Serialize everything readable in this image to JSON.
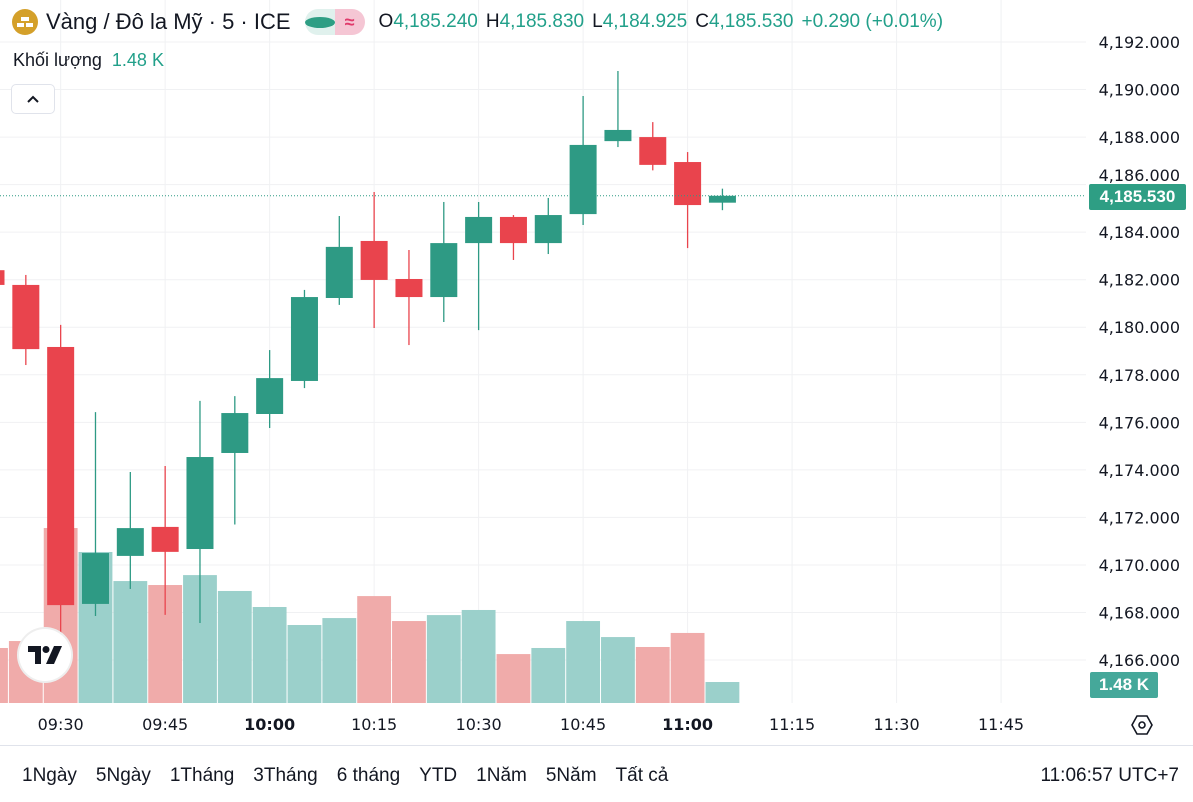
{
  "header": {
    "symbol_title": "Vàng / Đô la Mỹ · 5 · ICE",
    "open_label": "O",
    "open": "4,185.240",
    "high_label": "H",
    "high": "4,185.830",
    "low_label": "L",
    "low": "4,184.925",
    "close_label": "C",
    "close": "4,185.530",
    "change": "+0.290 (+0.01%)",
    "approx_icon": "≈"
  },
  "volume_legend": {
    "label": "Khối lượng",
    "value": "1.48 K"
  },
  "price_tag": "4,185.530",
  "volume_tag": "1.48 K",
  "bottom_bar": {
    "ranges": [
      "1Ngày",
      "5Ngày",
      "1Tháng",
      "3Tháng",
      "6 tháng",
      "YTD",
      "1Năm",
      "5Năm",
      "Tất cả"
    ],
    "clock": "11:06:57 UTC+7"
  },
  "colors": {
    "up": "#2e9a84",
    "down": "#e9444d",
    "vol_up": "#9bd0cb",
    "vol_down": "#f0abaa",
    "logo": "#d4a02a"
  },
  "chart_data": {
    "type": "candlestick",
    "title": "Vàng / Đô la Mỹ · 5 · ICE",
    "interval_minutes": 5,
    "ylim": [
      4165,
      4193.5
    ],
    "y_ticks": [
      "4,166.000",
      "4,168.000",
      "4,170.000",
      "4,172.000",
      "4,174.000",
      "4,176.000",
      "4,178.000",
      "4,180.000",
      "4,182.000",
      "4,184.000",
      "4,186.000",
      "4,188.000",
      "4,190.000",
      "4,192.000"
    ],
    "y_tick_values": [
      4166,
      4168,
      4170,
      4172,
      4174,
      4176,
      4178,
      4180,
      4182,
      4184,
      4186,
      4188,
      4190,
      4192
    ],
    "x_ticks": [
      {
        "label": "09:30",
        "bar": 2,
        "bold": false
      },
      {
        "label": "09:45",
        "bar": 5,
        "bold": false
      },
      {
        "label": "10:00",
        "bar": 8,
        "bold": true
      },
      {
        "label": "10:15",
        "bar": 11,
        "bold": false
      },
      {
        "label": "10:30",
        "bar": 14,
        "bold": false
      },
      {
        "label": "10:45",
        "bar": 17,
        "bold": false
      },
      {
        "label": "11:00",
        "bar": 20,
        "bold": true
      },
      {
        "label": "11:15",
        "bar": 23,
        "bold": false
      },
      {
        "label": "11:30",
        "bar": 26,
        "bold": false
      },
      {
        "label": "11:45",
        "bar": 29,
        "bold": false
      }
    ],
    "last_price": 4185.53,
    "candles": [
      {
        "t": "09:20",
        "o": 4182.4,
        "h": 4183.0,
        "l": 4181.6,
        "c": 4181.78,
        "v": 3.88
      },
      {
        "t": "09:25",
        "o": 4181.78,
        "h": 4182.2,
        "l": 4178.41,
        "c": 4179.08,
        "v": 4.37
      },
      {
        "t": "09:30",
        "o": 4179.17,
        "h": 4180.1,
        "l": 4167.05,
        "c": 4168.31,
        "v": 12.34
      },
      {
        "t": "09:35",
        "o": 4168.36,
        "h": 4176.43,
        "l": 4167.85,
        "c": 4170.5,
        "v": 10.65
      },
      {
        "t": "09:40",
        "o": 4170.38,
        "h": 4173.91,
        "l": 4168.99,
        "c": 4171.55,
        "v": 8.6
      },
      {
        "t": "09:45",
        "o": 4171.6,
        "h": 4174.16,
        "l": 4167.9,
        "c": 4170.55,
        "v": 8.32
      },
      {
        "t": "09:50",
        "o": 4170.67,
        "h": 4176.9,
        "l": 4167.56,
        "c": 4174.54,
        "v": 9.02
      },
      {
        "t": "09:55",
        "o": 4174.71,
        "h": 4177.1,
        "l": 4171.7,
        "c": 4176.39,
        "v": 7.9
      },
      {
        "t": "10:00",
        "o": 4176.35,
        "h": 4179.04,
        "l": 4175.76,
        "c": 4177.86,
        "v": 6.77
      },
      {
        "t": "10:05",
        "o": 4177.74,
        "h": 4181.57,
        "l": 4177.44,
        "c": 4181.27,
        "v": 5.5
      },
      {
        "t": "10:10",
        "o": 4181.23,
        "h": 4184.68,
        "l": 4180.94,
        "c": 4183.38,
        "v": 5.99
      },
      {
        "t": "10:15",
        "o": 4183.63,
        "h": 4185.69,
        "l": 4179.97,
        "c": 4181.99,
        "v": 7.54
      },
      {
        "t": "10:20",
        "o": 4182.03,
        "h": 4183.25,
        "l": 4179.25,
        "c": 4181.27,
        "v": 5.78
      },
      {
        "t": "10:25",
        "o": 4181.27,
        "h": 4185.27,
        "l": 4180.22,
        "c": 4183.54,
        "v": 6.2
      },
      {
        "t": "10:30",
        "o": 4183.54,
        "h": 4185.27,
        "l": 4179.88,
        "c": 4184.64,
        "v": 6.56
      },
      {
        "t": "10:35",
        "o": 4184.64,
        "h": 4184.72,
        "l": 4182.83,
        "c": 4183.54,
        "v": 3.45
      },
      {
        "t": "10:40",
        "o": 4183.54,
        "h": 4185.44,
        "l": 4183.08,
        "c": 4184.72,
        "v": 3.88
      },
      {
        "t": "10:45",
        "o": 4184.76,
        "h": 4189.73,
        "l": 4184.3,
        "c": 4187.67,
        "v": 5.78
      },
      {
        "t": "10:50",
        "o": 4187.83,
        "h": 4190.78,
        "l": 4187.58,
        "c": 4188.3,
        "v": 4.65
      },
      {
        "t": "10:55",
        "o": 4188.0,
        "h": 4188.63,
        "l": 4186.6,
        "c": 4186.83,
        "v": 3.95
      },
      {
        "t": "11:00",
        "o": 4186.95,
        "h": 4187.37,
        "l": 4183.33,
        "c": 4185.14,
        "v": 4.94
      },
      {
        "t": "11:05",
        "o": 4185.24,
        "h": 4185.83,
        "l": 4184.925,
        "c": 4185.53,
        "v": 1.48
      }
    ],
    "volume_unit": "K"
  }
}
